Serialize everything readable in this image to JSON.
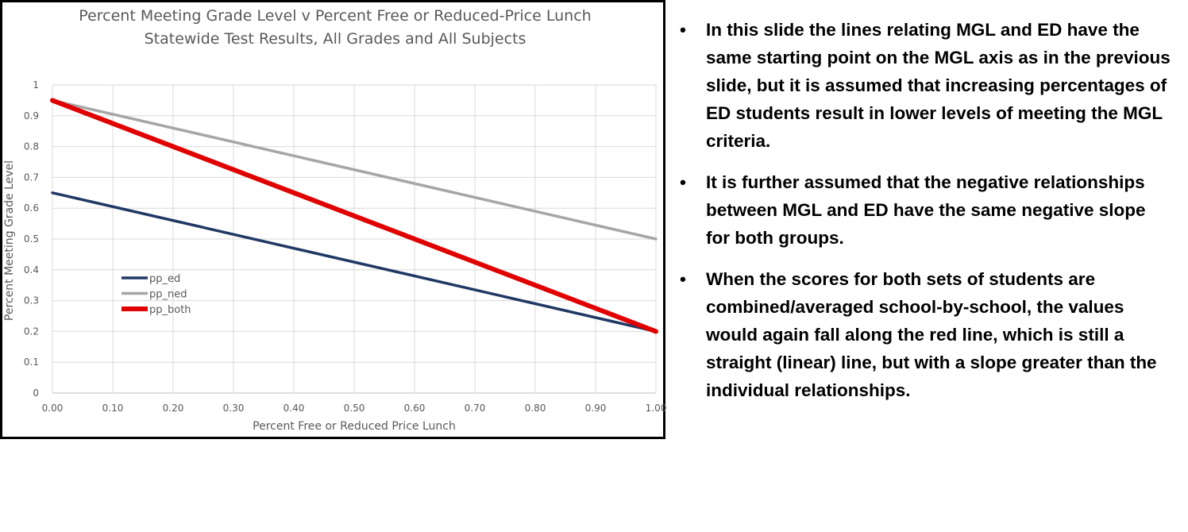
{
  "chart_data": {
    "type": "line",
    "title": "Percent Meeting Grade Level v Percent Free or Reduced-Price Lunch",
    "subtitle": "Statewide Test Results, All Grades and All Subjects",
    "xlabel": "Percent Free or Reduced Price Lunch",
    "ylabel": "Percent Meeting Grade Level",
    "xlim": [
      0,
      1
    ],
    "ylim": [
      0,
      1
    ],
    "x_ticks": [
      "0.00",
      "0.10",
      "0.20",
      "0.30",
      "0.40",
      "0.50",
      "0.60",
      "0.70",
      "0.80",
      "0.90",
      "1.00"
    ],
    "y_ticks": [
      "0",
      "0.1",
      "0.2",
      "0.3",
      "0.4",
      "0.5",
      "0.6",
      "0.7",
      "0.8",
      "0.9",
      "1"
    ],
    "grid": true,
    "legend_position": "center-left",
    "series": [
      {
        "name": "pp_ed",
        "x": [
          0,
          1
        ],
        "y": [
          0.65,
          0.2
        ],
        "color": "#203864"
      },
      {
        "name": "pp_ned",
        "x": [
          0,
          1
        ],
        "y": [
          0.95,
          0.5
        ],
        "color": "#a6a6a6"
      },
      {
        "name": "pp_both",
        "x": [
          0,
          1
        ],
        "y": [
          0.95,
          0.2
        ],
        "color": "#e00000"
      }
    ]
  },
  "notes": [
    {
      "bullet": "•",
      "text": "In this slide the lines relating MGL and ED have the same starting point on the MGL axis as in the previous slide, but it is assumed that increasing percentages of ED students result in lower levels of meeting the MGL criteria."
    },
    {
      "bullet": "•",
      "text": "It is further assumed that the negative relationships between MGL and ED have the same negative slope for both groups."
    },
    {
      "bullet": "•",
      "text": "When the scores for both sets of students are combined/averaged school-by-school, the values would again fall along the red line, which is still a straight (linear) line, but with a slope greater than the individual relationships."
    }
  ]
}
